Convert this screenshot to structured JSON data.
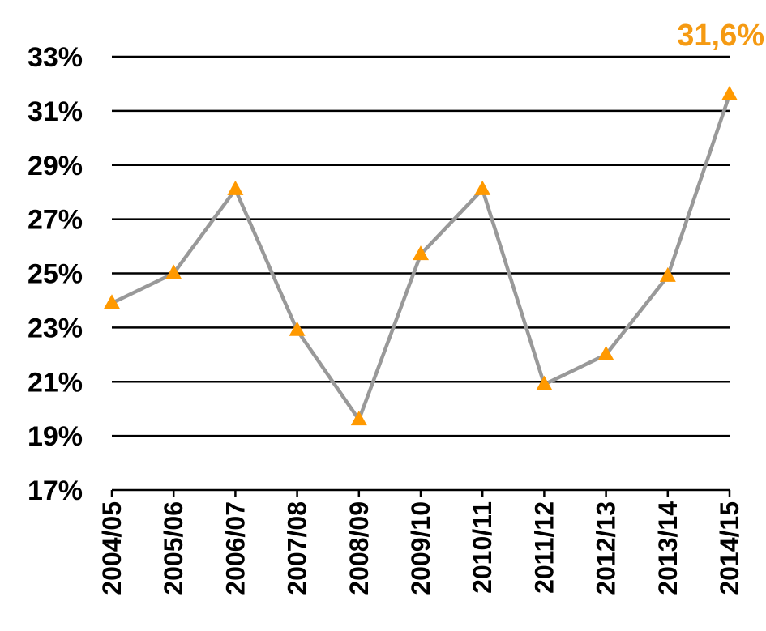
{
  "chart_data": {
    "type": "line",
    "categories": [
      "2004/05",
      "2005/06",
      "2006/07",
      "2007/08",
      "2008/09",
      "2009/10",
      "2010/11",
      "2011/12",
      "2012/13",
      "2013/14",
      "2014/15"
    ],
    "values": [
      23.9,
      25.0,
      28.1,
      22.9,
      19.6,
      25.7,
      28.1,
      20.9,
      22.0,
      24.9,
      31.6
    ],
    "y_ticks": [
      "17%",
      "19%",
      "21%",
      "23%",
      "25%",
      "27%",
      "29%",
      "31%",
      "33%"
    ],
    "ylim": [
      17,
      33
    ],
    "grid": true,
    "annotation": {
      "text": "31,6%",
      "index": 10
    },
    "colors": {
      "line": "#999999",
      "marker": "#ff9900",
      "annotation": "#f59a12",
      "grid": "#000000"
    }
  }
}
